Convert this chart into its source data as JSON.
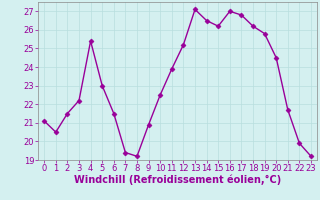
{
  "x": [
    0,
    1,
    2,
    3,
    4,
    5,
    6,
    7,
    8,
    9,
    10,
    11,
    12,
    13,
    14,
    15,
    16,
    17,
    18,
    19,
    20,
    21,
    22,
    23
  ],
  "y": [
    21.1,
    20.5,
    21.5,
    22.2,
    25.4,
    23.0,
    21.5,
    19.4,
    19.2,
    20.9,
    22.5,
    23.9,
    25.2,
    27.1,
    26.5,
    26.2,
    27.0,
    26.8,
    26.2,
    25.8,
    24.5,
    21.7,
    19.9,
    19.2
  ],
  "line_color": "#990099",
  "marker": "D",
  "marker_size": 2.5,
  "linewidth": 1.0,
  "xlabel": "Windchill (Refroidissement éolien,°C)",
  "xlabel_fontsize": 7,
  "ylim": [
    19,
    27.5
  ],
  "yticks": [
    19,
    20,
    21,
    22,
    23,
    24,
    25,
    26,
    27
  ],
  "xticks": [
    0,
    1,
    2,
    3,
    4,
    5,
    6,
    7,
    8,
    9,
    10,
    11,
    12,
    13,
    14,
    15,
    16,
    17,
    18,
    19,
    20,
    21,
    22,
    23
  ],
  "tick_fontsize": 6,
  "background_color": "#d4f0f0",
  "grid_color": "#b8dede",
  "spine_color": "#888888"
}
